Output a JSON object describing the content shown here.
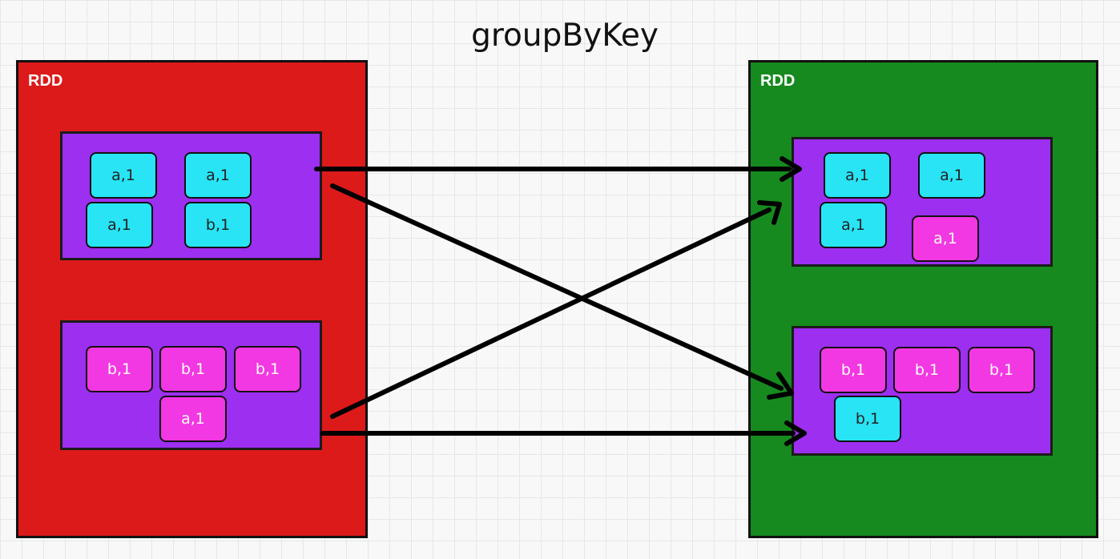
{
  "title": "groupByKey",
  "left_rdd": {
    "label": "RDD",
    "partitions": [
      {
        "records": [
          "a,1",
          "a,1",
          "a,1",
          "b,1"
        ]
      },
      {
        "records": [
          "b,1",
          "b,1",
          "b,1",
          "a,1"
        ]
      }
    ]
  },
  "right_rdd": {
    "label": "RDD",
    "partitions": [
      {
        "records": [
          "a,1",
          "a,1",
          "a,1",
          "a,1"
        ]
      },
      {
        "records": [
          "b,1",
          "b,1",
          "b,1",
          "b,1"
        ]
      }
    ]
  },
  "colors": {
    "left_rdd": "#dc1a1a",
    "right_rdd": "#168a1e",
    "partition": "#9d2ff0",
    "key_a": "#28e4f5",
    "key_b": "#f238e2"
  }
}
